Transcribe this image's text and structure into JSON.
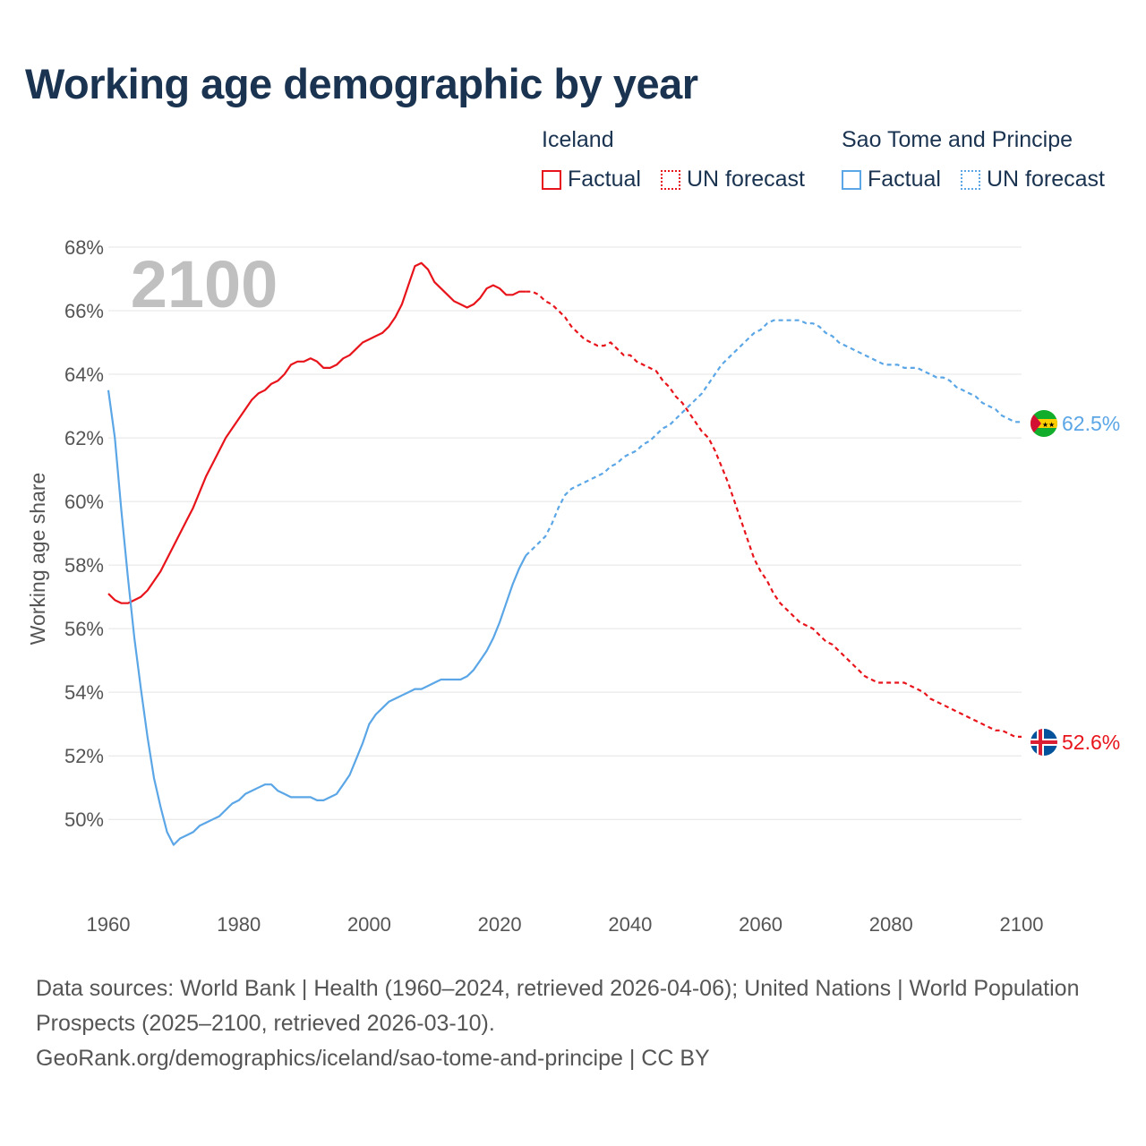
{
  "title": "Working age demographic by year",
  "legend": {
    "groups": [
      {
        "name": "Iceland",
        "color": "#e8141b",
        "factual_label": "Factual",
        "forecast_label": "UN forecast"
      },
      {
        "name": "Sao Tome and Principe",
        "color": "#5ba6e6",
        "factual_label": "Factual",
        "forecast_label": "UN forecast"
      }
    ]
  },
  "year_watermark": "2100",
  "chart_data": {
    "type": "line",
    "title": "Working age demographic by year",
    "xlabel": "",
    "ylabel": "Working age share",
    "xlim": [
      1960,
      2100
    ],
    "ylim": [
      47.5,
      68
    ],
    "x_ticks": [
      1960,
      1980,
      2000,
      2020,
      2040,
      2060,
      2080,
      2100
    ],
    "x_tick_labels": [
      "1960",
      "1980",
      "2000",
      "2020",
      "2040",
      "2060",
      "2080",
      "2100"
    ],
    "y_ticks": [
      50,
      52,
      54,
      56,
      58,
      60,
      62,
      64,
      66,
      68
    ],
    "y_tick_labels": [
      "50%",
      "52%",
      "54%",
      "56%",
      "58%",
      "60%",
      "62%",
      "64%",
      "66%",
      "68%"
    ],
    "grid": true,
    "forecast_start": 2024,
    "series": [
      {
        "name": "Iceland",
        "color": "#e8141b",
        "end_label": "52.6%",
        "flag": "iceland",
        "x": [
          1960,
          1961,
          1962,
          1963,
          1964,
          1965,
          1966,
          1967,
          1968,
          1969,
          1970,
          1971,
          1972,
          1973,
          1974,
          1975,
          1976,
          1977,
          1978,
          1979,
          1980,
          1981,
          1982,
          1983,
          1984,
          1985,
          1986,
          1987,
          1988,
          1989,
          1990,
          1991,
          1992,
          1993,
          1994,
          1995,
          1996,
          1997,
          1998,
          1999,
          2000,
          2001,
          2002,
          2003,
          2004,
          2005,
          2006,
          2007,
          2008,
          2009,
          2010,
          2011,
          2012,
          2013,
          2014,
          2015,
          2016,
          2017,
          2018,
          2019,
          2020,
          2021,
          2022,
          2023,
          2024,
          2025,
          2026,
          2027,
          2028,
          2029,
          2030,
          2031,
          2032,
          2033,
          2034,
          2035,
          2036,
          2037,
          2038,
          2039,
          2040,
          2041,
          2042,
          2043,
          2044,
          2045,
          2046,
          2047,
          2048,
          2049,
          2050,
          2051,
          2052,
          2053,
          2054,
          2055,
          2056,
          2057,
          2058,
          2059,
          2060,
          2061,
          2062,
          2063,
          2064,
          2065,
          2066,
          2067,
          2068,
          2069,
          2070,
          2071,
          2072,
          2073,
          2074,
          2075,
          2076,
          2077,
          2078,
          2079,
          2080,
          2081,
          2082,
          2083,
          2084,
          2085,
          2086,
          2087,
          2088,
          2089,
          2090,
          2091,
          2092,
          2093,
          2094,
          2095,
          2096,
          2097,
          2098,
          2099,
          2100
        ],
        "values": [
          57.1,
          56.9,
          56.8,
          56.8,
          56.9,
          57.0,
          57.2,
          57.5,
          57.8,
          58.2,
          58.6,
          59.0,
          59.4,
          59.8,
          60.3,
          60.8,
          61.2,
          61.6,
          62.0,
          62.3,
          62.6,
          62.9,
          63.2,
          63.4,
          63.5,
          63.7,
          63.8,
          64.0,
          64.3,
          64.4,
          64.4,
          64.5,
          64.4,
          64.2,
          64.2,
          64.3,
          64.5,
          64.6,
          64.8,
          65.0,
          65.1,
          65.2,
          65.3,
          65.5,
          65.8,
          66.2,
          66.8,
          67.4,
          67.5,
          67.3,
          66.9,
          66.7,
          66.5,
          66.3,
          66.2,
          66.1,
          66.2,
          66.4,
          66.7,
          66.8,
          66.7,
          66.5,
          66.5,
          66.6,
          66.6,
          66.6,
          66.5,
          66.3,
          66.2,
          66.0,
          65.8,
          65.5,
          65.3,
          65.1,
          65.0,
          64.9,
          64.9,
          65.0,
          64.8,
          64.6,
          64.6,
          64.4,
          64.3,
          64.2,
          64.1,
          63.8,
          63.6,
          63.3,
          63.1,
          62.8,
          62.5,
          62.2,
          62.0,
          61.6,
          61.1,
          60.6,
          60.0,
          59.4,
          58.8,
          58.2,
          57.8,
          57.5,
          57.1,
          56.8,
          56.6,
          56.4,
          56.2,
          56.1,
          56.0,
          55.8,
          55.6,
          55.5,
          55.3,
          55.1,
          54.9,
          54.7,
          54.5,
          54.4,
          54.3,
          54.3,
          54.3,
          54.3,
          54.3,
          54.2,
          54.1,
          54.0,
          53.8,
          53.7,
          53.6,
          53.5,
          53.4,
          53.3,
          53.2,
          53.1,
          53.0,
          52.9,
          52.8,
          52.8,
          52.7,
          52.6,
          52.6
        ]
      },
      {
        "name": "Sao Tome and Principe",
        "color": "#5ba6e6",
        "end_label": "62.5%",
        "flag": "sao-tome",
        "x": [
          1960,
          1961,
          1962,
          1963,
          1964,
          1965,
          1966,
          1967,
          1968,
          1969,
          1970,
          1971,
          1972,
          1973,
          1974,
          1975,
          1976,
          1977,
          1978,
          1979,
          1980,
          1981,
          1982,
          1983,
          1984,
          1985,
          1986,
          1987,
          1988,
          1989,
          1990,
          1991,
          1992,
          1993,
          1994,
          1995,
          1996,
          1997,
          1998,
          1999,
          2000,
          2001,
          2002,
          2003,
          2004,
          2005,
          2006,
          2007,
          2008,
          2009,
          2010,
          2011,
          2012,
          2013,
          2014,
          2015,
          2016,
          2017,
          2018,
          2019,
          2020,
          2021,
          2022,
          2023,
          2024,
          2025,
          2026,
          2027,
          2028,
          2029,
          2030,
          2031,
          2032,
          2033,
          2034,
          2035,
          2036,
          2037,
          2038,
          2039,
          2040,
          2041,
          2042,
          2043,
          2044,
          2045,
          2046,
          2047,
          2048,
          2049,
          2050,
          2051,
          2052,
          2053,
          2054,
          2055,
          2056,
          2057,
          2058,
          2059,
          2060,
          2061,
          2062,
          2063,
          2064,
          2065,
          2066,
          2067,
          2068,
          2069,
          2070,
          2071,
          2072,
          2073,
          2074,
          2075,
          2076,
          2077,
          2078,
          2079,
          2080,
          2081,
          2082,
          2083,
          2084,
          2085,
          2086,
          2087,
          2088,
          2089,
          2090,
          2091,
          2092,
          2093,
          2094,
          2095,
          2096,
          2097,
          2098,
          2099,
          2100
        ],
        "values": [
          63.5,
          62.0,
          59.7,
          57.6,
          55.7,
          54.1,
          52.6,
          51.3,
          50.4,
          49.6,
          49.2,
          49.4,
          49.5,
          49.6,
          49.8,
          49.9,
          50.0,
          50.1,
          50.3,
          50.5,
          50.6,
          50.8,
          50.9,
          51.0,
          51.1,
          51.1,
          50.9,
          50.8,
          50.7,
          50.7,
          50.7,
          50.7,
          50.6,
          50.6,
          50.7,
          50.8,
          51.1,
          51.4,
          51.9,
          52.4,
          53.0,
          53.3,
          53.5,
          53.7,
          53.8,
          53.9,
          54.0,
          54.1,
          54.1,
          54.2,
          54.3,
          54.4,
          54.4,
          54.4,
          54.4,
          54.5,
          54.7,
          55.0,
          55.3,
          55.7,
          56.2,
          56.8,
          57.4,
          57.9,
          58.3,
          58.5,
          58.7,
          58.9,
          59.3,
          59.8,
          60.2,
          60.4,
          60.5,
          60.6,
          60.7,
          60.8,
          60.9,
          61.1,
          61.2,
          61.4,
          61.5,
          61.6,
          61.8,
          61.9,
          62.1,
          62.3,
          62.4,
          62.6,
          62.8,
          63.0,
          63.2,
          63.4,
          63.7,
          64.0,
          64.3,
          64.5,
          64.7,
          64.9,
          65.1,
          65.3,
          65.4,
          65.6,
          65.7,
          65.7,
          65.7,
          65.7,
          65.7,
          65.6,
          65.6,
          65.5,
          65.3,
          65.2,
          65.0,
          64.9,
          64.8,
          64.7,
          64.6,
          64.5,
          64.4,
          64.3,
          64.3,
          64.3,
          64.2,
          64.2,
          64.2,
          64.1,
          64.0,
          63.9,
          63.9,
          63.8,
          63.6,
          63.5,
          63.4,
          63.3,
          63.1,
          63.0,
          62.9,
          62.7,
          62.6,
          62.5,
          62.5
        ]
      }
    ]
  },
  "footer": {
    "line1": "Data sources: World Bank | Health (1960–2024, retrieved 2026-04-06); United Nations | World Population Prospects (2025–2100, retrieved 2026-03-10).",
    "line2": "GeoRank.org/demographics/iceland/sao-tome-and-principe | CC BY"
  }
}
